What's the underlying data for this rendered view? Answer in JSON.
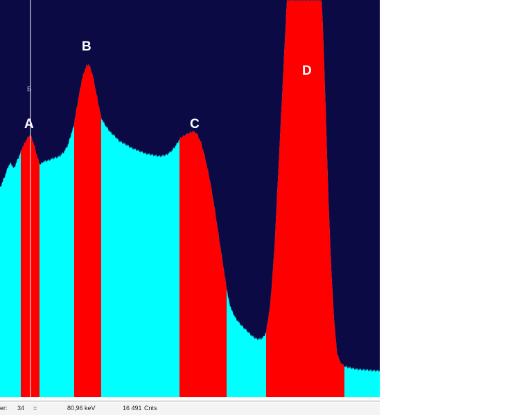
{
  "colors": {
    "background": "#0b0a45",
    "spectrum_fill": "#00ffff",
    "roi_fill": "#ff0000",
    "cursor_line": "#ffffff",
    "peak_label": "#ffffff"
  },
  "spectrum": {
    "cursor_marker_label": "B",
    "peak_labels": [
      "A",
      "B",
      "C",
      "D"
    ]
  },
  "status_bar": {
    "field_1_label": "er:",
    "field_1_value": "34",
    "separator": "=",
    "energy_value": "80,96",
    "energy_unit": "keV",
    "counts_value": "16 491",
    "counts_unit": "Cnts"
  }
}
